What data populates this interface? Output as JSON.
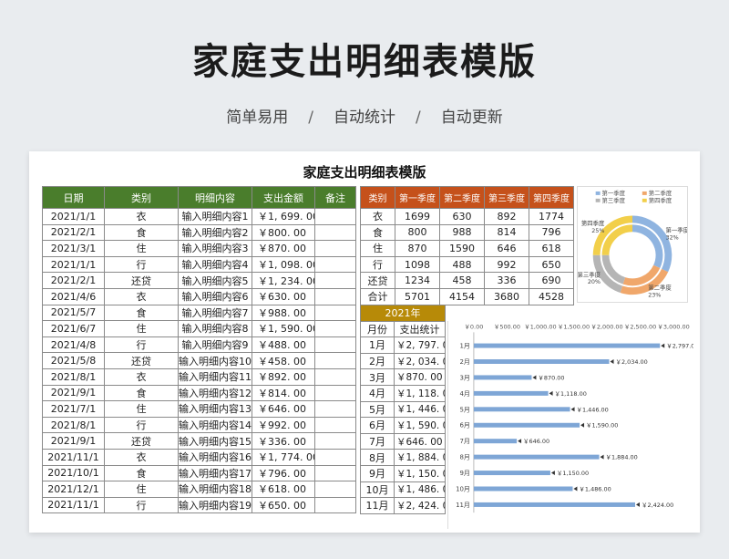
{
  "hero": {
    "title": "家庭支出明细表模版",
    "tags": [
      "简单易用",
      "自动统计",
      "自动更新"
    ],
    "separator": "/"
  },
  "sheet_title": "家庭支出明细表模版",
  "detail_table": {
    "headers": [
      "日期",
      "类别",
      "明细内容",
      "支出金额",
      "备注"
    ],
    "rows": [
      [
        "2021/1/1",
        "衣",
        "输入明细内容1",
        "￥1, 699. 00",
        ""
      ],
      [
        "2021/2/1",
        "食",
        "输入明细内容2",
        "￥800. 00",
        ""
      ],
      [
        "2021/3/1",
        "住",
        "输入明细内容3",
        "￥870. 00",
        ""
      ],
      [
        "2021/1/1",
        "行",
        "输入明细内容4",
        "￥1, 098. 00",
        ""
      ],
      [
        "2021/2/1",
        "还贷",
        "输入明细内容5",
        "￥1, 234. 00",
        ""
      ],
      [
        "2021/4/6",
        "衣",
        "输入明细内容6",
        "￥630. 00",
        ""
      ],
      [
        "2021/5/7",
        "食",
        "输入明细内容7",
        "￥988. 00",
        ""
      ],
      [
        "2021/6/7",
        "住",
        "输入明细内容8",
        "￥1, 590. 00",
        ""
      ],
      [
        "2021/4/8",
        "行",
        "输入明细内容9",
        "￥488. 00",
        ""
      ],
      [
        "2021/5/8",
        "还贷",
        "输入明细内容10",
        "￥458. 00",
        ""
      ],
      [
        "2021/8/1",
        "衣",
        "输入明细内容11",
        "￥892. 00",
        ""
      ],
      [
        "2021/9/1",
        "食",
        "输入明细内容12",
        "￥814. 00",
        ""
      ],
      [
        "2021/7/1",
        "住",
        "输入明细内容13",
        "￥646. 00",
        ""
      ],
      [
        "2021/8/1",
        "行",
        "输入明细内容14",
        "￥992. 00",
        ""
      ],
      [
        "2021/9/1",
        "还贷",
        "输入明细内容15",
        "￥336. 00",
        ""
      ],
      [
        "2021/11/1",
        "衣",
        "输入明细内容16",
        "￥1, 774. 00",
        ""
      ],
      [
        "2021/10/1",
        "食",
        "输入明细内容17",
        "￥796. 00",
        ""
      ],
      [
        "2021/12/1",
        "住",
        "输入明细内容18",
        "￥618. 00",
        ""
      ],
      [
        "2021/11/1",
        "行",
        "输入明细内容19",
        "￥650. 00",
        ""
      ]
    ]
  },
  "season_table": {
    "headers": [
      "类别",
      "第一季度",
      "第二季度",
      "第三季度",
      "第四季度"
    ],
    "rows": [
      [
        "衣",
        "1699",
        "630",
        "892",
        "1774"
      ],
      [
        "食",
        "800",
        "988",
        "814",
        "796"
      ],
      [
        "住",
        "870",
        "1590",
        "646",
        "618"
      ],
      [
        "行",
        "1098",
        "488",
        "992",
        "650"
      ],
      [
        "还贷",
        "1234",
        "458",
        "336",
        "690"
      ],
      [
        "合计",
        "5701",
        "4154",
        "3680",
        "4528"
      ]
    ]
  },
  "monthly_table": {
    "year": "2021年",
    "headers": [
      "月份",
      "支出统计"
    ],
    "rows": [
      [
        "1月",
        "￥2, 797. 00"
      ],
      [
        "2月",
        "￥2, 034. 00"
      ],
      [
        "3月",
        "￥870. 00"
      ],
      [
        "4月",
        "￥1, 118. 00"
      ],
      [
        "5月",
        "￥1, 446. 00"
      ],
      [
        "6月",
        "￥1, 590. 00"
      ],
      [
        "7月",
        "￥646. 00"
      ],
      [
        "8月",
        "￥1, 884. 00"
      ],
      [
        "9月",
        "￥1, 150. 00"
      ],
      [
        "10月",
        "￥1, 486. 00"
      ],
      [
        "11月",
        "￥2, 424. 00"
      ]
    ]
  },
  "colors": {
    "detail_header": "#4a7d2c",
    "season_header": "#c5511b",
    "year_header": "#b78a08",
    "bar": "#7ea6d6"
  },
  "chart_data": [
    {
      "type": "pie",
      "title": "",
      "legend_position": "top",
      "labels": [
        "第一季度",
        "第二季度",
        "第三季度",
        "第四季度"
      ],
      "values": [
        32,
        23,
        20,
        25
      ],
      "value_labels": [
        "32%",
        "23%",
        "20%",
        "25%"
      ],
      "colors": [
        "#8fb4e0",
        "#f0a76b",
        "#b5b5b5",
        "#f2cf4a"
      ]
    },
    {
      "type": "bar",
      "orientation": "horizontal",
      "title": "",
      "categories": [
        "1月",
        "2月",
        "3月",
        "4月",
        "5月",
        "6月",
        "7月",
        "8月",
        "9月",
        "10月",
        "11月"
      ],
      "values": [
        2797,
        2034,
        870,
        1118,
        1446,
        1590,
        646,
        1884,
        1150,
        1486,
        2424
      ],
      "value_labels": [
        "￥2,797.00",
        "￥2,034.00",
        "￥870.00",
        "￥1,118.00",
        "￥1,446.00",
        "￥1,590.00",
        "￥646.00",
        "￥1,884.00",
        "￥1,150.00",
        "￥1,486.00",
        "￥2,424.00"
      ],
      "xlim": [
        0,
        3000
      ],
      "xticks": [
        0,
        500,
        1000,
        1500,
        2000,
        2500,
        3000
      ],
      "xtick_labels": [
        "￥0.00",
        "￥500.00",
        "￥1,000.00",
        "￥1,500.00",
        "￥2,000.00",
        "￥2,500.00",
        "￥3,000.00"
      ],
      "xlabel": "",
      "ylabel": "",
      "grid": false
    }
  ]
}
